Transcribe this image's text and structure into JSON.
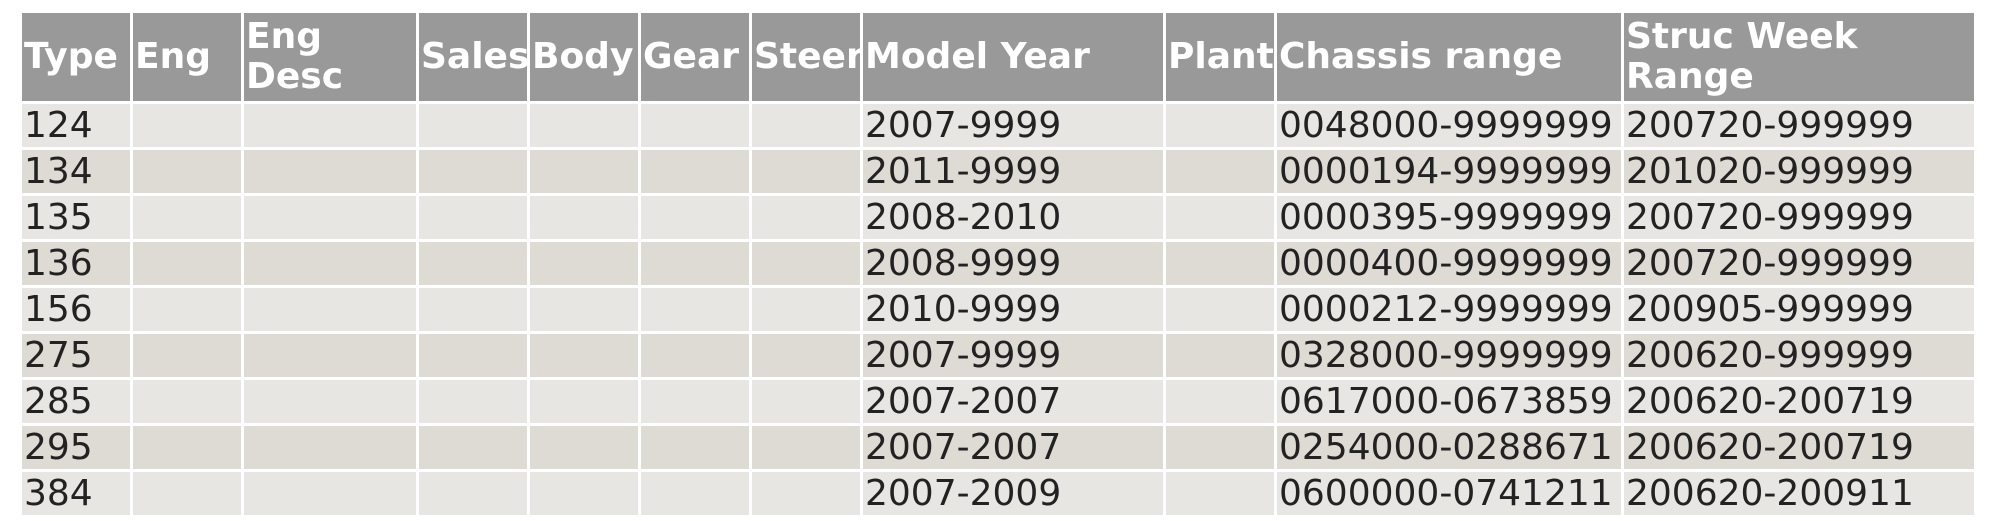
{
  "table": {
    "columns": [
      "Type",
      "Eng",
      "Eng Desc",
      "Sales",
      "Body",
      "Gear",
      "Steer",
      "Model Year",
      "Plant",
      "Chassis range",
      "Struc Week Range"
    ],
    "rows": [
      [
        "124",
        "",
        "",
        "",
        "",
        "",
        "",
        "2007-9999",
        "",
        "0048000-9999999",
        "200720-999999"
      ],
      [
        "134",
        "",
        "",
        "",
        "",
        "",
        "",
        "2011-9999",
        "",
        "0000194-9999999",
        "201020-999999"
      ],
      [
        "135",
        "",
        "",
        "",
        "",
        "",
        "",
        "2008-2010",
        "",
        "0000395-9999999",
        "200720-999999"
      ],
      [
        "136",
        "",
        "",
        "",
        "",
        "",
        "",
        "2008-9999",
        "",
        "0000400-9999999",
        "200720-999999"
      ],
      [
        "156",
        "",
        "",
        "",
        "",
        "",
        "",
        "2010-9999",
        "",
        "0000212-9999999",
        "200905-999999"
      ],
      [
        "275",
        "",
        "",
        "",
        "",
        "",
        "",
        "2007-9999",
        "",
        "0328000-9999999",
        "200620-999999"
      ],
      [
        "285",
        "",
        "",
        "",
        "",
        "",
        "",
        "2007-2007",
        "",
        "0617000-0673859",
        "200620-200719"
      ],
      [
        "295",
        "",
        "",
        "",
        "",
        "",
        "",
        "2007-2007",
        "",
        "0254000-0288671",
        "200620-200719"
      ],
      [
        "384",
        "",
        "",
        "",
        "",
        "",
        "",
        "2007-2009",
        "",
        "0600000-0741211",
        "200620-200911"
      ]
    ]
  },
  "colors": {
    "header_background": "#999999",
    "header_text": "#ffffff",
    "row_background": "#e8e6e2",
    "row_alt_background": "#dedbd5"
  }
}
